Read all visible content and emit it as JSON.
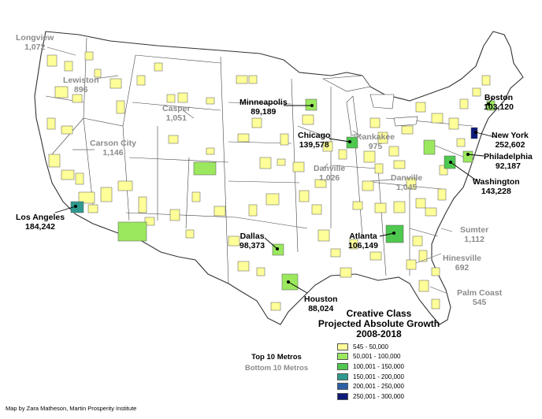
{
  "map": {
    "region": "Contiguous United States",
    "categories": [
      {
        "label": "545 - 50,000",
        "color": "#ffff99"
      },
      {
        "label": "50,001 - 100,000",
        "color": "#9be85f"
      },
      {
        "label": "100,001 - 150,000",
        "color": "#4fc84f"
      },
      {
        "label": "150,001 - 200,000",
        "color": "#2e9a8f"
      },
      {
        "label": "200,001 - 250,000",
        "color": "#2a5fa6"
      },
      {
        "label": "250,001 - 300,000",
        "color": "#0d1a7a"
      }
    ]
  },
  "legend": {
    "title_line1": "Creative Class",
    "title_line2": "Projected Absolute Growth",
    "title_line3": "2008-2018",
    "items": [
      "545 - 50,000",
      "50,001 - 100,000",
      "100,001 - 150,000",
      "150,001 - 200,000",
      "200,001 - 250,000",
      "250,001 - 300,000"
    ]
  },
  "key": {
    "top_label": "Top 10 Metros",
    "bottom_label": "Bottom 10 Metros"
  },
  "credit": "Map by Zara Matheson, Martin Prosperity Institute",
  "top_metros": [
    {
      "name": "Boston",
      "value": "103,120"
    },
    {
      "name": "New York",
      "value": "252,602"
    },
    {
      "name": "Philadelphia",
      "value": "92,187"
    },
    {
      "name": "Washington",
      "value": "143,228"
    },
    {
      "name": "Chicago",
      "value": "139,578"
    },
    {
      "name": "Minneapolis",
      "value": "89,189"
    },
    {
      "name": "Los Angeles",
      "value": "184,242"
    },
    {
      "name": "Dallas",
      "value": "98,373"
    },
    {
      "name": "Atlanta",
      "value": "106,149"
    },
    {
      "name": "Houston",
      "value": "88,024"
    }
  ],
  "bottom_metros": [
    {
      "name": "Longview",
      "value": "1,072"
    },
    {
      "name": "Lewiston",
      "value": "896"
    },
    {
      "name": "Casper",
      "value": "1,051"
    },
    {
      "name": "Carson City",
      "value": "1,146"
    },
    {
      "name": "Kankakee",
      "value": "975"
    },
    {
      "name": "Danville",
      "value": "1,026"
    },
    {
      "name": "Danville",
      "value": "1,045"
    },
    {
      "name": "Sumter",
      "value": "1,112"
    },
    {
      "name": "Hinesville",
      "value": "692"
    },
    {
      "name": "Palm Coast",
      "value": "545"
    }
  ]
}
